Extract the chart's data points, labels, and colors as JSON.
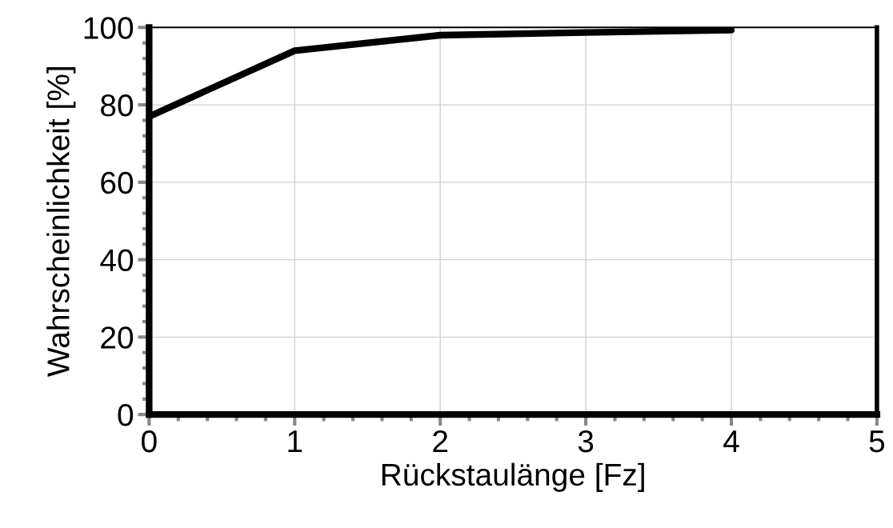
{
  "chart_data": {
    "type": "line",
    "xlabel": "Rückstaulänge [Fz]",
    "ylabel": "Wahrscheinlichkeit [%]",
    "x": [
      0,
      1,
      2,
      3,
      4
    ],
    "series": [
      {
        "color": "#000000",
        "values": [
          77,
          94,
          98,
          98.7,
          99.3
        ]
      }
    ],
    "xlim": [
      0,
      5
    ],
    "xticks": [
      0,
      1,
      2,
      3,
      4,
      5
    ],
    "ylim": [
      0,
      100
    ],
    "yticks": [
      0,
      20,
      40,
      60,
      80,
      100
    ],
    "grid": true,
    "marker": "none",
    "line_style": "solid"
  }
}
